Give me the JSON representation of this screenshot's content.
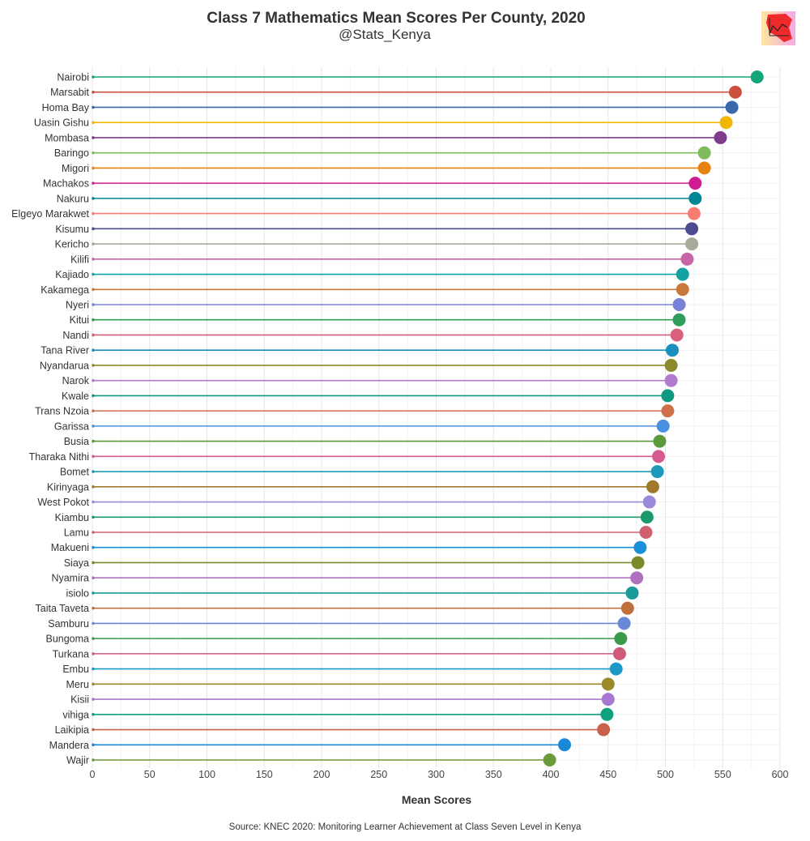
{
  "chart_data": {
    "type": "lollipop",
    "title": "Class 7 Mathematics Mean Scores Per County, 2020",
    "subtitle": "@Stats_Kenya",
    "xlabel": "Mean Scores",
    "ylabel": "",
    "xlim": [
      0,
      600
    ],
    "xticks": [
      0,
      50,
      100,
      150,
      200,
      250,
      300,
      350,
      400,
      450,
      500,
      550,
      600
    ],
    "grid": true,
    "source": "Source: KNEC 2020: Monitoring Learner Achievement at Class Seven Level in Kenya",
    "categories": [
      "Nairobi",
      "Marsabit",
      "Homa Bay",
      "Uasin Gishu",
      "Mombasa",
      "Baringo",
      "Migori",
      "Machakos",
      "Nakuru",
      "Elgeyo Marakwet",
      "Kisumu",
      "Kericho",
      "Kilifi",
      "Kajiado",
      "Kakamega",
      "Nyeri",
      "Kitui",
      "Nandi",
      "Tana River",
      "Nyandarua",
      "Narok",
      "Kwale",
      "Trans Nzoia",
      "Garissa",
      "Busia",
      "Tharaka Nithi",
      "Bomet",
      "Kirinyaga",
      "West Pokot",
      "Kiambu",
      "Lamu",
      "Makueni",
      "Siaya",
      "Nyamira",
      "isiolo",
      "Taita Taveta",
      "Samburu",
      "Bungoma",
      "Turkana",
      "Embu",
      "Meru",
      "Kisii",
      "vihiga",
      "Laikipia",
      "Mandera",
      "Wajir"
    ],
    "values": [
      580,
      561,
      558,
      553,
      548,
      534,
      534,
      526,
      526,
      525,
      523,
      523,
      519,
      515,
      515,
      512,
      512,
      510,
      506,
      505,
      505,
      502,
      502,
      498,
      495,
      494,
      493,
      489,
      486,
      484,
      483,
      478,
      476,
      475,
      471,
      467,
      464,
      461,
      460,
      457,
      450,
      450,
      449,
      446,
      412,
      399
    ],
    "colors": [
      "#11a579",
      "#cc503e",
      "#3969ac",
      "#f2b701",
      "#7f3c8d",
      "#80ba5a",
      "#e68310",
      "#cf1c90",
      "#008695",
      "#f97b72",
      "#4b4b8f",
      "#a5aa99",
      "#c865a8",
      "#12a2a2",
      "#c8783a",
      "#7a80d8",
      "#2e9e5a",
      "#d9607a",
      "#1a8fc0",
      "#8c8a2a",
      "#b07ad0",
      "#0e9a80",
      "#d0704a",
      "#4a90e0",
      "#5a9a3a",
      "#d55a90",
      "#1e9ab8",
      "#a07a2a",
      "#9a88d8",
      "#1a9a6a",
      "#d06070",
      "#1a90d8",
      "#7a8a2a",
      "#b070c0",
      "#1a9a9a",
      "#c0703a",
      "#6a88d8",
      "#3a9a4a",
      "#d05a7a",
      "#1a98c8",
      "#9a8a2a",
      "#a878d0",
      "#10a080",
      "#c8604a",
      "#1a88d8",
      "#6a9a3a"
    ]
  }
}
